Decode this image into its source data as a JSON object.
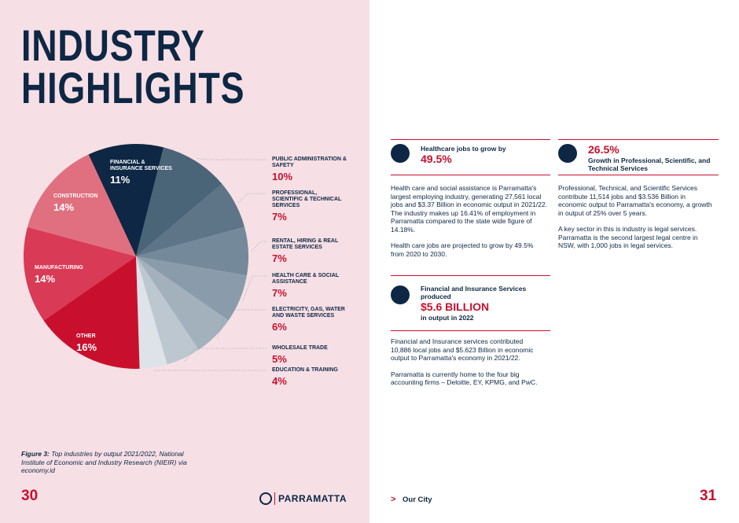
{
  "title_lines": [
    "INDUSTRY",
    "HIGHLIGHTS"
  ],
  "chart_data": {
    "type": "pie",
    "categories": [
      "FINANCIAL & INSURANCE SERVICES",
      "PUBLIC ADMINISTRATION & SAFETY",
      "PROFESSIONAL, SCIENTIFIC & TECHNICAL SERVICES",
      "RENTAL, HIRING & REAL ESTATE SERVICES",
      "HEALTH CARE & SOCIAL ASSISTANCE",
      "ELECTRICITY, GAS, WATER AND WASTE SERVICES",
      "WHOLESALE TRADE",
      "EDUCATION & TRAINING",
      "OTHER",
      "MANUFACTURING",
      "CONSTRUCTION"
    ],
    "values": [
      11,
      10,
      7,
      7,
      7,
      6,
      5,
      4,
      16,
      14,
      14
    ],
    "value_labels": [
      "11%",
      "10%",
      "7%",
      "7%",
      "7%",
      "6%",
      "5%",
      "4%",
      "16%",
      "14%",
      "14%"
    ],
    "colors": [
      "#0d2744",
      "#4a6478",
      "#5e7587",
      "#74899a",
      "#8a9cab",
      "#a3b1bd",
      "#bcc7d0",
      "#dde3e8",
      "#c8102e",
      "#d93a55",
      "#e0707f"
    ]
  },
  "caption": {
    "label": "Figure 3:",
    "text": "Top industries by output 2021/2022, National Institute of Economic and Industry Research (NIEIR) via economy.id"
  },
  "cards": [
    {
      "heading": "Healthcare jobs to grow by",
      "value": "49.5%",
      "paragraphs": [
        "Health care and social assistance is Parramatta's largest employing industry, generating 27,561 local jobs and $3.37 Billion in economic output in 2021/22. The industry makes up 16.41% of employment in Parramatta compared to the state wide figure of 14.18%.",
        "Health care jobs are projected to grow by 49.5% from 2020 to 2030."
      ]
    },
    {
      "value": "26.5%",
      "heading": "Growth in Professional, Scientific, and Technical Services",
      "paragraphs": [
        "Professional, Technical, and Scientific Services contribute 11,514 jobs and $3.536 Billion in economic output to Parramatta's economy, a growth in output of 25% over 5 years.",
        "A key sector in this is industry is legal services. Parramatta is the second largest legal centre in NSW, with 1,000 jobs in legal services."
      ]
    },
    {
      "heading": "Financial and Insurance Services produced",
      "value": "$5.6 BILLION",
      "after": "in output in 2022",
      "paragraphs": [
        "Financial and Insurance services contributed 10,886 local jobs and $5.623 Billion in economic output to Parramatta's economy in 2021/22.",
        "Parramatta is currently home to the four big accounting firms – Deloitte, EY, KPMG, and PwC."
      ]
    }
  ],
  "footer": {
    "left_page": "30",
    "right_page": "31",
    "logo": "PARRAMATTA",
    "section": "Our City"
  }
}
